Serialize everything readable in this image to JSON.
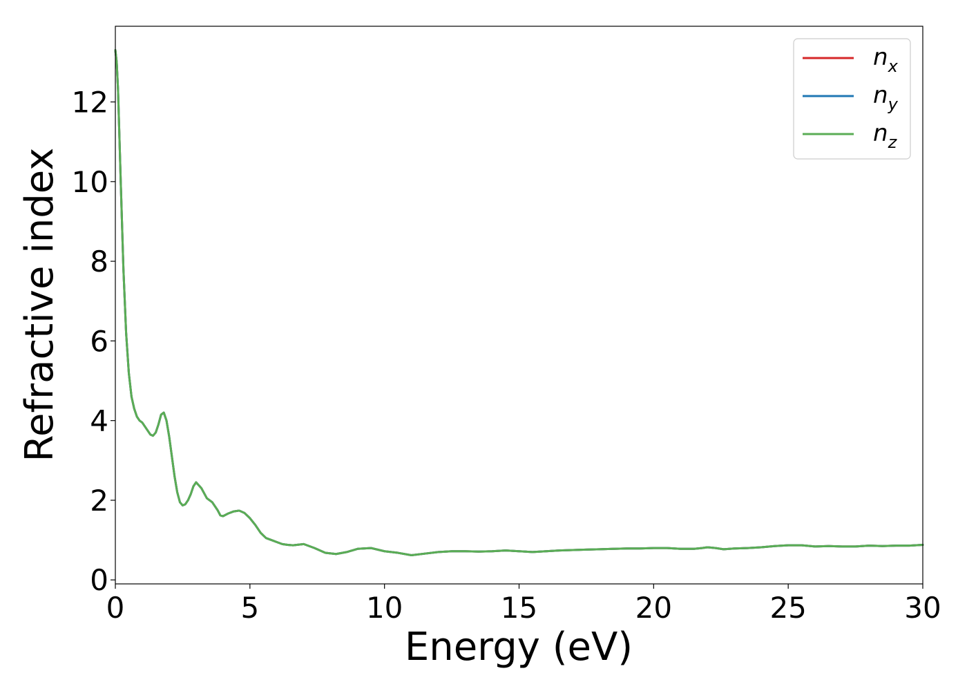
{
  "chart_data": {
    "type": "line",
    "title": "",
    "xlabel": "Energy (eV)",
    "ylabel": "Refractive index",
    "xlim": [
      0,
      30
    ],
    "ylim": [
      -0.1,
      13.9
    ],
    "xticks": [
      0,
      5,
      10,
      15,
      20,
      25,
      30
    ],
    "yticks": [
      0,
      2,
      4,
      6,
      8,
      10,
      12
    ],
    "grid": false,
    "legend_position": "top-right",
    "x": [
      0.0,
      0.05,
      0.1,
      0.2,
      0.3,
      0.4,
      0.5,
      0.6,
      0.7,
      0.8,
      0.9,
      1.0,
      1.1,
      1.2,
      1.3,
      1.4,
      1.5,
      1.6,
      1.7,
      1.8,
      1.9,
      2.0,
      2.1,
      2.2,
      2.3,
      2.4,
      2.5,
      2.6,
      2.7,
      2.8,
      2.9,
      3.0,
      3.2,
      3.4,
      3.6,
      3.8,
      3.9,
      4.0,
      4.2,
      4.4,
      4.6,
      4.8,
      5.0,
      5.2,
      5.4,
      5.6,
      5.8,
      6.0,
      6.2,
      6.4,
      6.6,
      7.0,
      7.4,
      7.8,
      8.2,
      8.6,
      9.0,
      9.5,
      10.0,
      10.5,
      11.0,
      11.5,
      12.0,
      12.5,
      13.0,
      13.5,
      14.0,
      14.5,
      15.0,
      15.5,
      16.0,
      16.5,
      17.0,
      17.5,
      18.0,
      18.5,
      19.0,
      19.5,
      20.0,
      20.5,
      21.0,
      21.5,
      21.8,
      22.0,
      22.3,
      22.6,
      23.0,
      23.5,
      24.0,
      24.5,
      25.0,
      25.5,
      26.0,
      26.5,
      27.0,
      27.5,
      28.0,
      28.5,
      29.0,
      29.5,
      30.0
    ],
    "series": [
      {
        "name": "n_x",
        "label_main": "n",
        "label_sub": "x",
        "color": "#d62728",
        "y": [
          13.3,
          13.0,
          12.3,
          10.0,
          7.8,
          6.2,
          5.2,
          4.6,
          4.3,
          4.1,
          4.0,
          3.95,
          3.85,
          3.75,
          3.65,
          3.62,
          3.7,
          3.9,
          4.15,
          4.2,
          4.0,
          3.6,
          3.1,
          2.6,
          2.2,
          1.95,
          1.87,
          1.9,
          2.0,
          2.15,
          2.35,
          2.45,
          2.3,
          2.05,
          1.95,
          1.75,
          1.62,
          1.6,
          1.67,
          1.72,
          1.74,
          1.68,
          1.55,
          1.38,
          1.18,
          1.05,
          1.0,
          0.95,
          0.9,
          0.88,
          0.87,
          0.9,
          0.8,
          0.68,
          0.65,
          0.7,
          0.78,
          0.8,
          0.72,
          0.68,
          0.62,
          0.66,
          0.7,
          0.72,
          0.72,
          0.71,
          0.72,
          0.74,
          0.72,
          0.7,
          0.72,
          0.74,
          0.75,
          0.76,
          0.77,
          0.78,
          0.79,
          0.79,
          0.8,
          0.8,
          0.78,
          0.78,
          0.8,
          0.82,
          0.8,
          0.77,
          0.79,
          0.8,
          0.82,
          0.85,
          0.87,
          0.87,
          0.84,
          0.85,
          0.84,
          0.84,
          0.86,
          0.85,
          0.86,
          0.86,
          0.88
        ]
      },
      {
        "name": "n_y",
        "label_main": "n",
        "label_sub": "y",
        "color": "#1f77b4",
        "y": [
          13.3,
          13.0,
          12.3,
          10.0,
          7.8,
          6.2,
          5.2,
          4.6,
          4.3,
          4.1,
          4.0,
          3.95,
          3.85,
          3.75,
          3.65,
          3.62,
          3.7,
          3.9,
          4.15,
          4.2,
          4.0,
          3.6,
          3.1,
          2.6,
          2.2,
          1.95,
          1.87,
          1.9,
          2.0,
          2.15,
          2.35,
          2.45,
          2.3,
          2.05,
          1.95,
          1.75,
          1.62,
          1.6,
          1.67,
          1.72,
          1.74,
          1.68,
          1.55,
          1.38,
          1.18,
          1.05,
          1.0,
          0.95,
          0.9,
          0.88,
          0.87,
          0.9,
          0.8,
          0.68,
          0.65,
          0.7,
          0.78,
          0.8,
          0.72,
          0.68,
          0.62,
          0.66,
          0.7,
          0.72,
          0.72,
          0.71,
          0.72,
          0.74,
          0.72,
          0.7,
          0.72,
          0.74,
          0.75,
          0.76,
          0.77,
          0.78,
          0.79,
          0.79,
          0.8,
          0.8,
          0.78,
          0.78,
          0.8,
          0.82,
          0.8,
          0.77,
          0.79,
          0.8,
          0.82,
          0.85,
          0.87,
          0.87,
          0.84,
          0.85,
          0.84,
          0.84,
          0.86,
          0.85,
          0.86,
          0.86,
          0.88
        ]
      },
      {
        "name": "n_z",
        "label_main": "n",
        "label_sub": "z",
        "color": "#5aad55",
        "y": [
          13.3,
          13.0,
          12.3,
          10.0,
          7.8,
          6.2,
          5.2,
          4.6,
          4.3,
          4.1,
          4.0,
          3.95,
          3.85,
          3.75,
          3.65,
          3.62,
          3.7,
          3.9,
          4.15,
          4.2,
          4.0,
          3.6,
          3.1,
          2.6,
          2.2,
          1.95,
          1.87,
          1.9,
          2.0,
          2.15,
          2.35,
          2.45,
          2.3,
          2.05,
          1.95,
          1.75,
          1.62,
          1.6,
          1.67,
          1.72,
          1.74,
          1.68,
          1.55,
          1.38,
          1.18,
          1.05,
          1.0,
          0.95,
          0.9,
          0.88,
          0.87,
          0.9,
          0.8,
          0.68,
          0.65,
          0.7,
          0.78,
          0.8,
          0.72,
          0.68,
          0.62,
          0.66,
          0.7,
          0.72,
          0.72,
          0.71,
          0.72,
          0.74,
          0.72,
          0.7,
          0.72,
          0.74,
          0.75,
          0.76,
          0.77,
          0.78,
          0.79,
          0.79,
          0.8,
          0.8,
          0.78,
          0.78,
          0.8,
          0.82,
          0.8,
          0.77,
          0.79,
          0.8,
          0.82,
          0.85,
          0.87,
          0.87,
          0.84,
          0.85,
          0.84,
          0.84,
          0.86,
          0.85,
          0.86,
          0.86,
          0.88
        ]
      }
    ]
  }
}
